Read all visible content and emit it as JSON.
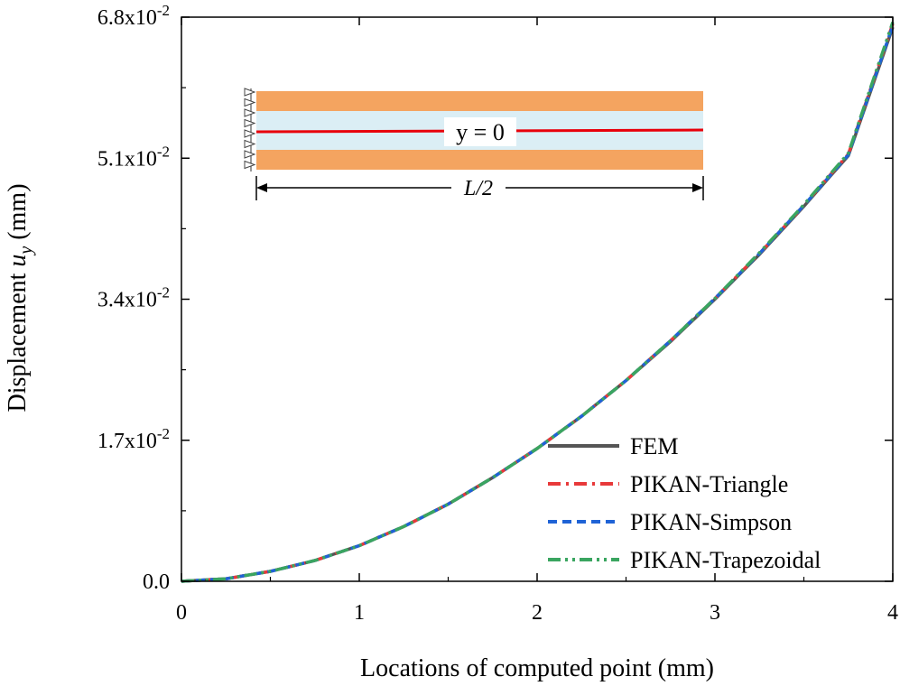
{
  "chart_data": {
    "type": "line",
    "xlabel": "Locations of computed point (mm)",
    "ylabel": {
      "prefix": "Displacement ",
      "symbol": "u",
      "subscript": "y",
      "suffix": " (mm)"
    },
    "xlim": [
      0,
      4
    ],
    "ylim": [
      0,
      0.068
    ],
    "x_ticks": [
      {
        "value": 0,
        "label": "0"
      },
      {
        "value": 1,
        "label": "1"
      },
      {
        "value": 2,
        "label": "2"
      },
      {
        "value": 3,
        "label": "3"
      },
      {
        "value": 4,
        "label": "4"
      }
    ],
    "y_ticks": [
      {
        "value": 0,
        "label": "0.0",
        "mantissa": "",
        "exponent": ""
      },
      {
        "value": 0.017,
        "label": "",
        "mantissa": "1.7x10",
        "exponent": "-2"
      },
      {
        "value": 0.034,
        "label": "",
        "mantissa": "3.4x10",
        "exponent": "-2"
      },
      {
        "value": 0.051,
        "label": "",
        "mantissa": "5.1x10",
        "exponent": "-2"
      },
      {
        "value": 0.068,
        "label": "",
        "mantissa": "6.8x10",
        "exponent": "-2"
      }
    ],
    "grid": false,
    "legend_position": "bottom-right",
    "x": [
      0,
      0.25,
      0.5,
      0.75,
      1.0,
      1.25,
      1.5,
      1.75,
      2.0,
      2.25,
      2.5,
      2.75,
      3.0,
      3.25,
      3.5,
      3.75,
      4.0
    ],
    "series": [
      {
        "name": "FEM",
        "color": "#555555",
        "dash": "solid",
        "values": [
          0.0,
          0.0003,
          0.0012,
          0.0025,
          0.0043,
          0.0066,
          0.0093,
          0.0125,
          0.016,
          0.0199,
          0.0242,
          0.0289,
          0.034,
          0.0394,
          0.0452,
          0.0513,
          0.0668
        ]
      },
      {
        "name": "PIKAN-Triangle",
        "color": "#e8393a",
        "dash": "dashdot",
        "values": [
          0.0,
          0.0003,
          0.0012,
          0.0025,
          0.0043,
          0.0066,
          0.0093,
          0.0125,
          0.016,
          0.0199,
          0.0242,
          0.029,
          0.0341,
          0.0395,
          0.0453,
          0.0515,
          0.0672
        ]
      },
      {
        "name": "PIKAN-Simpson",
        "color": "#1f63d6",
        "dash": "dash",
        "values": [
          0.0,
          0.0003,
          0.0012,
          0.0025,
          0.0043,
          0.0066,
          0.0093,
          0.0125,
          0.016,
          0.0199,
          0.0242,
          0.029,
          0.0341,
          0.0395,
          0.0453,
          0.0514,
          0.067
        ]
      },
      {
        "name": "PIKAN-Trapezoidal",
        "color": "#3aa560",
        "dash": "dashdotdot",
        "values": [
          0.0,
          0.0003,
          0.0012,
          0.0025,
          0.0043,
          0.0066,
          0.0093,
          0.0125,
          0.016,
          0.0199,
          0.0242,
          0.029,
          0.0341,
          0.0396,
          0.0454,
          0.0516,
          0.0674
        ]
      }
    ],
    "inset": {
      "label_center": "y = 0",
      "label_span": "L/2",
      "layer_outer_color": "#f4a460",
      "layer_core_color": "#dbeef5",
      "midline_color": "#e8000b"
    }
  }
}
